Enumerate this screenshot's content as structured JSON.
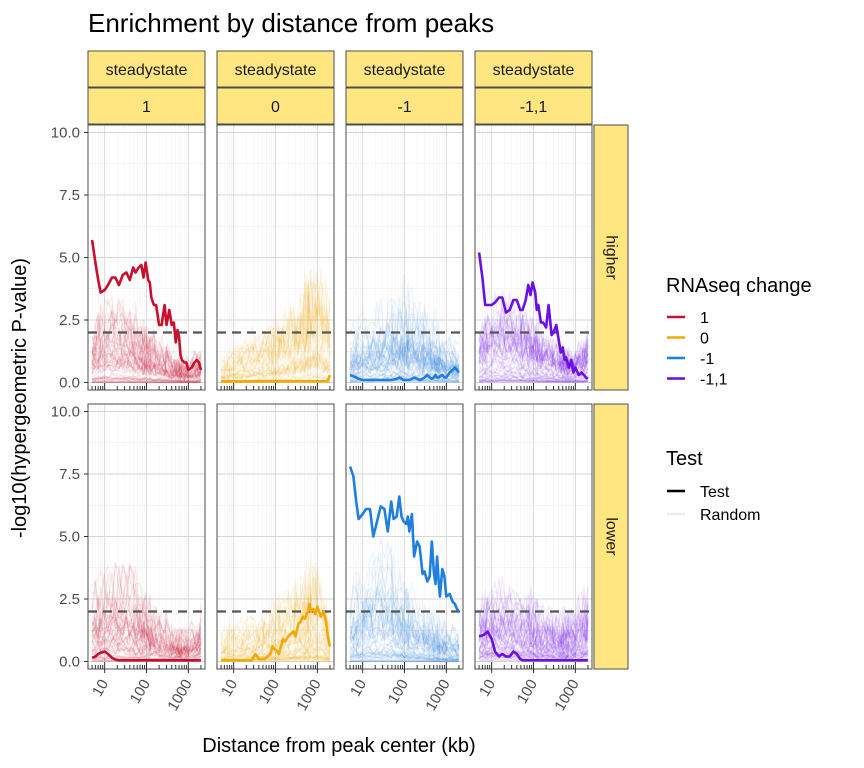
{
  "chart_data": {
    "type": "line",
    "title": "Enrichment by distance from peaks",
    "xlabel": "Distance from peak center (kb)",
    "ylabel": "-log10(hypergeometric P-value)",
    "x_scale": "log10",
    "xlim": [
      4,
      2500
    ],
    "ylim": [
      -0.3,
      10.3
    ],
    "x_ticks": [
      10,
      100,
      1000
    ],
    "x_tick_labels": [
      "10",
      "100",
      "1000"
    ],
    "y_ticks": [
      0,
      2.5,
      5,
      7.5,
      10
    ],
    "y_tick_labels": [
      "0.0",
      "2.5",
      "5.0",
      "7.5",
      "10.0"
    ],
    "threshold_line": 2,
    "grid": true,
    "columns": [
      {
        "strip_top": "steadystate",
        "strip_bottom": "1"
      },
      {
        "strip_top": "steadystate",
        "strip_bottom": "0"
      },
      {
        "strip_top": "steadystate",
        "strip_bottom": "-1"
      },
      {
        "strip_top": "steadystate",
        "strip_bottom": "-1,1"
      }
    ],
    "rows": [
      {
        "strip": "higher"
      },
      {
        "strip": "lower"
      }
    ],
    "colors": {
      "1": "#C8102E",
      "0": "#F5A800",
      "-1": "#1E7FE0",
      "-1,1": "#6A0FE8"
    },
    "panels": [
      {
        "row": 0,
        "col": 0,
        "color_key": "1",
        "x": [
          5,
          6,
          7,
          8,
          10,
          12,
          15,
          18,
          22,
          27,
          33,
          40,
          48,
          55,
          65,
          75,
          85,
          95,
          110,
          120,
          130,
          150,
          170,
          200,
          230,
          270,
          300,
          350,
          400,
          450,
          500,
          550,
          600,
          650,
          700,
          800,
          900,
          1000,
          1200,
          1400,
          1600,
          1800,
          2000
        ],
        "test": [
          5.7,
          4.8,
          4.1,
          3.6,
          3.7,
          3.9,
          4.2,
          4.2,
          3.9,
          4.3,
          4.4,
          4.1,
          4.6,
          4.4,
          4.6,
          4.7,
          4.2,
          4.8,
          4.1,
          4.0,
          3.4,
          3.1,
          3.1,
          2.3,
          2.3,
          3.1,
          2.3,
          2.9,
          2.3,
          2.4,
          1.6,
          2.1,
          1.8,
          1.1,
          0.9,
          0.8,
          0.8,
          0.5,
          0.6,
          0.8,
          0.9,
          0.8,
          0.5
        ],
        "random_envelope": [
          1.7,
          2.1,
          2.3,
          2.5,
          2.6,
          2.5,
          2.7,
          2.6,
          2.7,
          2.6,
          2.4,
          2.5,
          2.3,
          2.3,
          2.1,
          2.0,
          1.9,
          2.0,
          1.8,
          1.8,
          1.6,
          1.7,
          1.5,
          1.4,
          1.3,
          1.2,
          1.3,
          1.1,
          1.0,
          1.0,
          0.9,
          0.9,
          0.8,
          0.8,
          0.8,
          0.7,
          0.8,
          0.7,
          0.9,
          1.0,
          1.0,
          1.1,
          1.2
        ]
      },
      {
        "row": 0,
        "col": 1,
        "color_key": "0",
        "x": [
          5,
          6,
          7,
          8,
          10,
          12,
          15,
          18,
          22,
          27,
          33,
          40,
          48,
          55,
          65,
          75,
          85,
          95,
          110,
          120,
          130,
          150,
          170,
          200,
          230,
          270,
          300,
          350,
          400,
          450,
          500,
          550,
          600,
          650,
          700,
          800,
          900,
          1000,
          1200,
          1400,
          1600,
          1800,
          2000
        ],
        "test": [
          0.05,
          0.05,
          0.05,
          0.05,
          0.05,
          0.05,
          0.05,
          0.05,
          0.05,
          0.05,
          0.05,
          0.05,
          0.05,
          0.05,
          0.05,
          0.05,
          0.05,
          0.05,
          0.05,
          0.05,
          0.05,
          0.05,
          0.05,
          0.05,
          0.05,
          0.05,
          0.05,
          0.05,
          0.05,
          0.05,
          0.05,
          0.05,
          0.05,
          0.05,
          0.05,
          0.05,
          0.05,
          0.05,
          0.05,
          0.05,
          0.05,
          0.1,
          0.3
        ],
        "random_envelope": [
          0.7,
          0.8,
          0.9,
          1.0,
          1.1,
          1.2,
          1.3,
          1.4,
          1.4,
          1.5,
          1.5,
          1.6,
          1.6,
          1.7,
          1.8,
          1.8,
          1.9,
          1.9,
          2.0,
          2.1,
          2.1,
          2.2,
          2.3,
          2.4,
          2.5,
          2.6,
          2.7,
          2.9,
          3.0,
          3.1,
          3.3,
          3.4,
          3.5,
          3.6,
          3.7,
          3.9,
          4.0,
          4.1,
          3.8,
          3.5,
          3.2,
          2.9,
          2.6
        ]
      },
      {
        "row": 0,
        "col": 2,
        "color_key": "-1",
        "x": [
          5,
          6,
          7,
          8,
          10,
          12,
          15,
          18,
          22,
          27,
          33,
          40,
          48,
          55,
          65,
          75,
          85,
          95,
          110,
          120,
          130,
          150,
          170,
          200,
          230,
          270,
          300,
          350,
          400,
          450,
          500,
          550,
          600,
          650,
          700,
          800,
          900,
          1000,
          1200,
          1400,
          1600,
          1800,
          2000
        ],
        "test": [
          0.3,
          0.25,
          0.2,
          0.15,
          0.1,
          0.1,
          0.1,
          0.1,
          0.1,
          0.1,
          0.1,
          0.1,
          0.1,
          0.12,
          0.15,
          0.2,
          0.15,
          0.1,
          0.1,
          0.1,
          0.1,
          0.15,
          0.2,
          0.15,
          0.1,
          0.15,
          0.2,
          0.3,
          0.2,
          0.15,
          0.2,
          0.3,
          0.2,
          0.2,
          0.25,
          0.3,
          0.2,
          0.2,
          0.4,
          0.5,
          0.6,
          0.5,
          0.4
        ],
        "random_envelope": [
          1.6,
          1.8,
          2.0,
          2.1,
          2.2,
          2.3,
          2.4,
          2.5,
          2.6,
          2.6,
          2.7,
          2.8,
          2.9,
          2.9,
          3.0,
          3.1,
          3.1,
          3.0,
          3.0,
          2.9,
          2.9,
          2.8,
          2.8,
          2.7,
          2.6,
          2.5,
          2.4,
          2.3,
          2.2,
          2.1,
          2.1,
          2.0,
          1.9,
          1.8,
          1.8,
          1.7,
          1.6,
          1.5,
          1.5,
          1.4,
          1.3,
          1.2,
          1.2
        ]
      },
      {
        "row": 0,
        "col": 3,
        "color_key": "-1,1",
        "x": [
          5,
          6,
          7,
          8,
          10,
          12,
          15,
          18,
          22,
          27,
          33,
          40,
          48,
          55,
          65,
          75,
          85,
          95,
          110,
          120,
          130,
          150,
          170,
          200,
          230,
          270,
          300,
          350,
          400,
          450,
          500,
          550,
          600,
          650,
          700,
          800,
          900,
          1000,
          1200,
          1400,
          1600,
          1800,
          2000
        ],
        "test": [
          5.2,
          4.2,
          3.1,
          3.1,
          3.1,
          3.2,
          3.4,
          3.4,
          2.8,
          2.9,
          3.3,
          3.3,
          2.9,
          2.9,
          3.3,
          3.9,
          3.5,
          4.0,
          3.6,
          2.9,
          3.1,
          2.4,
          2.4,
          2.2,
          3.1,
          1.9,
          2.0,
          2.3,
          1.7,
          1.2,
          1.4,
          0.9,
          1.0,
          0.8,
          0.6,
          0.9,
          0.4,
          0.6,
          0.3,
          0.4,
          0.3,
          0.2,
          0.15
        ],
        "random_envelope": [
          1.8,
          2.1,
          2.3,
          2.4,
          2.6,
          2.7,
          2.7,
          2.8,
          2.8,
          2.7,
          2.7,
          2.6,
          2.5,
          2.4,
          2.3,
          2.2,
          2.1,
          2.1,
          2.0,
          1.9,
          1.9,
          1.8,
          1.7,
          1.6,
          1.5,
          1.5,
          1.4,
          1.3,
          1.3,
          1.2,
          1.2,
          1.1,
          1.1,
          1.0,
          1.0,
          1.1,
          1.1,
          1.2,
          1.3,
          1.4,
          1.5,
          1.6,
          1.7
        ]
      },
      {
        "row": 1,
        "col": 0,
        "color_key": "1",
        "x": [
          5,
          6,
          7,
          8,
          10,
          12,
          15,
          18,
          22,
          27,
          33,
          40,
          48,
          55,
          65,
          75,
          85,
          95,
          110,
          120,
          130,
          150,
          170,
          200,
          230,
          270,
          300,
          350,
          400,
          450,
          500,
          550,
          600,
          650,
          700,
          800,
          900,
          1000,
          1200,
          1400,
          1600,
          1800,
          2000
        ],
        "test": [
          0.15,
          0.2,
          0.3,
          0.35,
          0.4,
          0.3,
          0.15,
          0.08,
          0.05,
          0.05,
          0.05,
          0.05,
          0.05,
          0.05,
          0.05,
          0.05,
          0.05,
          0.05,
          0.05,
          0.05,
          0.05,
          0.05,
          0.05,
          0.05,
          0.05,
          0.05,
          0.05,
          0.05,
          0.05,
          0.05,
          0.05,
          0.05,
          0.05,
          0.05,
          0.05,
          0.05,
          0.05,
          0.05,
          0.05,
          0.05,
          0.05,
          0.05,
          0.05
        ],
        "random_envelope": [
          2.3,
          2.5,
          2.6,
          2.7,
          2.8,
          2.9,
          2.9,
          3.0,
          3.0,
          2.9,
          2.9,
          2.8,
          2.7,
          2.6,
          2.5,
          2.4,
          2.3,
          2.2,
          2.1,
          2.0,
          1.9,
          1.8,
          1.7,
          1.6,
          1.5,
          1.4,
          1.3,
          1.2,
          1.1,
          1.0,
          1.0,
          1.0,
          0.9,
          0.9,
          0.9,
          1.0,
          1.0,
          1.0,
          1.1,
          1.2,
          1.4,
          1.5,
          1.6
        ]
      },
      {
        "row": 1,
        "col": 1,
        "color_key": "0",
        "x": [
          5,
          6,
          7,
          8,
          10,
          12,
          15,
          18,
          22,
          27,
          33,
          40,
          48,
          55,
          65,
          75,
          85,
          95,
          110,
          120,
          130,
          150,
          170,
          200,
          230,
          270,
          300,
          350,
          400,
          450,
          500,
          550,
          600,
          650,
          700,
          800,
          900,
          1000,
          1200,
          1400,
          1600,
          1800,
          2000
        ],
        "test": [
          0.05,
          0.05,
          0.05,
          0.05,
          0.05,
          0.05,
          0.05,
          0.05,
          0.05,
          0.05,
          0.3,
          0.1,
          0.1,
          0.1,
          0.2,
          0.3,
          0.6,
          0.5,
          0.4,
          0.3,
          0.5,
          0.9,
          0.8,
          1.0,
          1.1,
          1.2,
          1.0,
          1.5,
          1.6,
          1.8,
          1.7,
          1.9,
          2.0,
          2.3,
          2.0,
          2.1,
          1.9,
          2.2,
          1.8,
          2.0,
          1.6,
          1.0,
          0.6
        ],
        "random_envelope": [
          0.8,
          0.9,
          1.0,
          1.1,
          1.2,
          1.2,
          1.3,
          1.3,
          1.4,
          1.4,
          1.5,
          1.5,
          1.6,
          1.6,
          1.7,
          1.7,
          1.8,
          1.8,
          1.9,
          1.9,
          2.0,
          2.0,
          2.1,
          2.2,
          2.3,
          2.4,
          2.5,
          2.6,
          2.7,
          2.8,
          2.8,
          2.9,
          3.0,
          3.0,
          3.1,
          3.0,
          2.9,
          2.8,
          2.6,
          2.3,
          2.0,
          1.7,
          1.4
        ]
      },
      {
        "row": 1,
        "col": 2,
        "color_key": "-1",
        "x": [
          5,
          6,
          7,
          8,
          10,
          12,
          15,
          18,
          22,
          27,
          33,
          40,
          48,
          55,
          65,
          75,
          85,
          95,
          110,
          120,
          130,
          150,
          170,
          200,
          230,
          270,
          300,
          350,
          400,
          450,
          500,
          550,
          600,
          650,
          700,
          800,
          900,
          1000,
          1200,
          1400,
          1600,
          1800,
          2000
        ],
        "test": [
          7.8,
          7.4,
          6.4,
          5.7,
          5.9,
          6.1,
          6.1,
          5.0,
          5.6,
          6.2,
          6.1,
          5.2,
          6.4,
          5.7,
          5.8,
          6.6,
          5.8,
          5.6,
          5.5,
          5.8,
          5.2,
          5.9,
          4.2,
          4.8,
          4.6,
          3.5,
          3.6,
          3.2,
          3.4,
          4.8,
          3.6,
          3.1,
          4.2,
          3.3,
          2.6,
          3.7,
          3.4,
          2.6,
          2.7,
          2.4,
          2.3,
          2.1,
          2.0
        ],
        "random_envelope": [
          2.4,
          2.6,
          2.8,
          3.0,
          3.2,
          3.4,
          3.6,
          3.8,
          3.9,
          4.0,
          4.0,
          3.9,
          3.8,
          3.6,
          3.4,
          3.2,
          3.0,
          2.9,
          2.7,
          2.6,
          2.5,
          2.4,
          2.3,
          2.2,
          2.1,
          2.0,
          1.9,
          1.8,
          1.7,
          1.6,
          1.5,
          1.5,
          1.4,
          1.4,
          1.3,
          1.3,
          1.2,
          1.2,
          1.1,
          1.1,
          1.0,
          1.0,
          1.0
        ]
      },
      {
        "row": 1,
        "col": 3,
        "color_key": "-1,1",
        "x": [
          5,
          6,
          7,
          8,
          10,
          12,
          15,
          18,
          22,
          27,
          33,
          40,
          48,
          55,
          65,
          75,
          85,
          95,
          110,
          120,
          130,
          150,
          170,
          200,
          230,
          270,
          300,
          350,
          400,
          450,
          500,
          550,
          600,
          650,
          700,
          800,
          900,
          1000,
          1200,
          1400,
          1600,
          1800,
          2000
        ],
        "test": [
          1.0,
          1.05,
          1.1,
          1.2,
          0.9,
          0.4,
          0.2,
          0.3,
          0.2,
          0.2,
          0.4,
          0.3,
          0.1,
          0.05,
          0.05,
          0.05,
          0.05,
          0.05,
          0.05,
          0.05,
          0.05,
          0.05,
          0.05,
          0.05,
          0.05,
          0.05,
          0.05,
          0.05,
          0.05,
          0.05,
          0.05,
          0.05,
          0.05,
          0.05,
          0.05,
          0.05,
          0.05,
          0.05,
          0.05,
          0.05,
          0.05,
          0.05,
          0.05
        ],
        "random_envelope": [
          2.2,
          2.4,
          2.5,
          2.6,
          2.7,
          2.7,
          2.7,
          2.7,
          2.6,
          2.6,
          2.5,
          2.5,
          2.4,
          2.4,
          2.3,
          2.3,
          2.2,
          2.2,
          2.1,
          2.1,
          2.0,
          2.0,
          1.9,
          1.9,
          1.8,
          1.8,
          1.7,
          1.7,
          1.6,
          1.6,
          1.6,
          1.7,
          1.7,
          1.8,
          1.8,
          1.9,
          2.0,
          2.1,
          2.2,
          2.3,
          2.4,
          2.5,
          2.6
        ]
      }
    ],
    "legends": [
      {
        "title": "RNAseq change",
        "items": [
          {
            "label": "1",
            "color": "#C8102E"
          },
          {
            "label": "0",
            "color": "#F5A800"
          },
          {
            "label": "-1",
            "color": "#1E7FE0"
          },
          {
            "label": "-1,1",
            "color": "#6A0FE8"
          }
        ]
      },
      {
        "title": "Test",
        "items": [
          {
            "label": "Test",
            "color": "#000000",
            "style": "solid"
          },
          {
            "label": "Random",
            "color": "#000000",
            "style": "faint"
          }
        ]
      }
    ]
  }
}
